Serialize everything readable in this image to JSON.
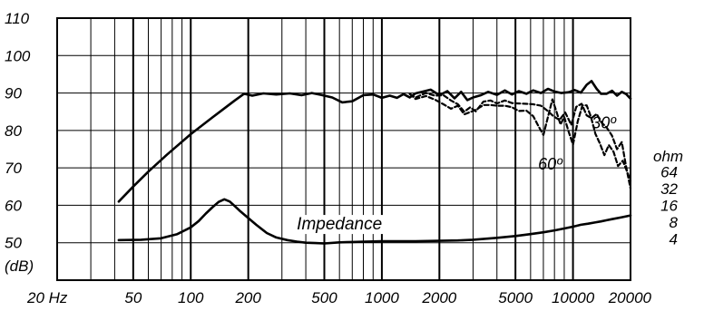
{
  "chart_data": {
    "type": "line",
    "title": "",
    "xlabel": "",
    "ylabel": "(dB)",
    "x_scale": "log",
    "xlim": [
      20,
      20000
    ],
    "ylim": [
      40,
      110
    ],
    "grid": true,
    "y_ticks": [
      {
        "value": 110,
        "label": "110"
      },
      {
        "value": 100,
        "label": "100"
      },
      {
        "value": 90,
        "label": "90"
      },
      {
        "value": 80,
        "label": "80"
      },
      {
        "value": 70,
        "label": "70"
      },
      {
        "value": 60,
        "label": "60"
      },
      {
        "value": 50,
        "label": "50"
      }
    ],
    "x_ticks": [
      {
        "value": 20,
        "label": "20 Hz"
      },
      {
        "value": 50,
        "label": "50"
      },
      {
        "value": 100,
        "label": "100"
      },
      {
        "value": 200,
        "label": "200"
      },
      {
        "value": 500,
        "label": "500"
      },
      {
        "value": 1000,
        "label": "1000"
      },
      {
        "value": 2000,
        "label": "2000"
      },
      {
        "value": 5000,
        "label": "5000"
      },
      {
        "value": 10000,
        "label": "10000"
      },
      {
        "value": 20000,
        "label": "20000"
      }
    ],
    "minor_x_gridlines": [
      30,
      40,
      60,
      70,
      80,
      90,
      300,
      400,
      600,
      700,
      800,
      900,
      3000,
      4000,
      6000,
      7000,
      8000,
      9000
    ],
    "impedance_axis": {
      "title": "ohm",
      "labels": [
        {
          "label": "64",
          "db": 69
        },
        {
          "label": "32",
          "db": 64.5
        },
        {
          "label": "16",
          "db": 60
        },
        {
          "label": "8",
          "db": 55.5
        },
        {
          "label": "4",
          "db": 51
        }
      ]
    },
    "annotations": [
      {
        "text": "Impedance",
        "x": 600,
        "y": 55
      },
      {
        "text": "30º",
        "x": 14500,
        "y": 82
      },
      {
        "text": "60º",
        "x": 7600,
        "y": 71
      }
    ],
    "series": [
      {
        "style": "solid",
        "x": [
          42,
          50,
          60,
          75,
          100,
          130,
          170,
          190,
          210,
          240,
          280,
          330,
          380,
          430,
          480,
          550,
          620,
          700,
          800,
          900,
          1000,
          1100,
          1200,
          1300,
          1400,
          1500,
          1650,
          1800,
          2000,
          2200,
          2400,
          2600,
          2800,
          3000,
          3300,
          3600,
          4000,
          4400,
          4800,
          5200,
          5700,
          6200,
          6800,
          7400,
          8000,
          8700,
          9500,
          10200,
          11000,
          11800,
          12500,
          13300,
          14000,
          15000,
          16000,
          17000,
          18000,
          19000,
          20000
        ],
        "values": [
          61,
          65,
          69,
          73.5,
          79,
          83.5,
          88,
          89.8,
          89.3,
          89.9,
          89.6,
          89.9,
          89.4,
          90,
          89.5,
          88.8,
          87.5,
          87.8,
          89.4,
          89.6,
          88.7,
          89.3,
          88.7,
          89.7,
          88.8,
          89.9,
          90.4,
          90.9,
          89.4,
          90.5,
          88.6,
          90.3,
          88.1,
          88.8,
          89.4,
          90.3,
          89.5,
          90.7,
          89.6,
          90.5,
          89.8,
          90.7,
          90.0,
          91.1,
          90.4,
          90.0,
          90.2,
          90.8,
          90.1,
          92.2,
          93.2,
          91.1,
          89.8,
          89.8,
          90.6,
          89.3,
          90.3,
          89.7,
          88.5
        ]
      },
      {
        "style": "dashed",
        "x": [
          1400,
          1500,
          1700,
          1900,
          2100,
          2300,
          2500,
          2700,
          2900,
          3100,
          3400,
          3700,
          4000,
          4400,
          4800,
          5200,
          5700,
          6200,
          6800,
          7300,
          7900,
          8500,
          9100,
          9800,
          10400,
          11100,
          11800,
          12500,
          13300,
          14100,
          15000,
          16000,
          17000,
          18000,
          19000,
          20000
        ],
        "values": [
          89.7,
          88.8,
          90.0,
          89.3,
          89.4,
          88.0,
          87.0,
          85.0,
          86.2,
          85.1,
          87.7,
          88.0,
          87.2,
          88.0,
          87.3,
          87.2,
          87.1,
          87.0,
          86.6,
          85.4,
          83.8,
          82.8,
          84.8,
          81.5,
          86.3,
          87.1,
          84.0,
          83.3,
          84.4,
          82.1,
          80.8,
          78.6,
          75.0,
          76.9,
          70.1,
          64.5
        ]
      },
      {
        "style": "dashed",
        "x": [
          1400,
          1500,
          1700,
          1900,
          2100,
          2300,
          2500,
          2700,
          2900,
          3100,
          3400,
          3700,
          4000,
          4400,
          4800,
          5200,
          5700,
          6200,
          6600,
          7000,
          7400,
          7800,
          8200,
          8600,
          9000,
          9500,
          10000,
          10600,
          11200,
          11800,
          12400,
          13100,
          13800,
          14600,
          15400,
          16300,
          17200,
          18200,
          19200,
          20000
        ],
        "values": [
          89.8,
          88.4,
          89.2,
          88.2,
          87.0,
          85.8,
          86.6,
          84.3,
          84.9,
          85.5,
          86.8,
          86.8,
          86.6,
          86.6,
          86.2,
          85.2,
          85.3,
          83.8,
          81.1,
          78.8,
          83.6,
          88.3,
          85.0,
          81.6,
          83.6,
          79.6,
          76.2,
          82.5,
          86.7,
          86.7,
          83.7,
          79.1,
          76.6,
          73.4,
          76.1,
          74.3,
          70.5,
          71.9,
          69.0,
          66.5
        ]
      },
      {
        "style": "solid",
        "x": [
          42,
          55,
          70,
          85,
          100,
          110,
          120,
          130,
          140,
          150,
          160,
          170,
          180,
          200,
          220,
          250,
          280,
          320,
          360,
          400,
          450,
          500,
          600,
          700,
          800,
          1000,
          1200,
          1500,
          2000,
          2500,
          3000,
          4000,
          5000,
          6000,
          7000,
          8000,
          9000,
          10000,
          11000,
          12000,
          13000,
          14000,
          15000,
          16000,
          18000,
          20000
        ],
        "values": [
          50.7,
          50.8,
          51.2,
          52.3,
          54.1,
          55.8,
          57.8,
          59.5,
          60.9,
          61.6,
          61.0,
          59.8,
          58.6,
          56.6,
          54.8,
          52.6,
          51.4,
          50.7,
          50.3,
          50.0,
          49.9,
          49.8,
          50.1,
          50.2,
          50.3,
          50.4,
          50.4,
          50.4,
          50.5,
          50.6,
          50.8,
          51.3,
          51.8,
          52.3,
          52.8,
          53.3,
          53.8,
          54.3,
          54.8,
          55.1,
          55.4,
          55.7,
          56.0,
          56.3,
          56.8,
          57.3
        ]
      }
    ]
  }
}
